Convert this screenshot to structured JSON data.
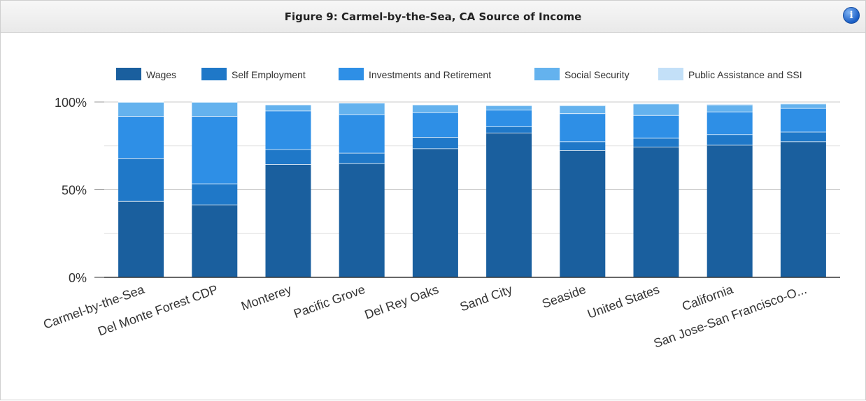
{
  "header": {
    "title": "Figure 9: Carmel-by-the-Sea, CA Source of Income",
    "info_icon": "info-icon"
  },
  "chart_data": {
    "type": "bar",
    "stacked": true,
    "title": "Figure 9: Carmel-by-the-Sea, CA Source of Income",
    "xlabel": "",
    "ylabel": "",
    "ylim": [
      0,
      100
    ],
    "y_ticks": [
      "0%",
      "50%",
      "100%"
    ],
    "legend_position": "top",
    "grid": true,
    "categories": [
      "Carmel-by-the-Sea",
      "Del Monte Forest CDP",
      "Monterey",
      "Pacific Grove",
      "Del Rey Oaks",
      "Sand City",
      "Seaside",
      "United States",
      "California",
      "San Jose-San Francisco-O..."
    ],
    "series": [
      {
        "name": "Wages",
        "color": "#1a5f9e",
        "values": [
          43.5,
          41.5,
          64.5,
          65,
          73.5,
          82.5,
          72.5,
          74.5,
          75.5,
          77.5
        ]
      },
      {
        "name": "Self Employment",
        "color": "#1f78c8",
        "values": [
          24.5,
          12,
          8.5,
          6,
          6.5,
          3.5,
          5,
          5,
          6,
          5.5
        ]
      },
      {
        "name": "Investments and Retirement",
        "color": "#2e8fe6",
        "values": [
          24,
          38.5,
          22,
          22,
          14,
          9.5,
          16,
          13,
          13,
          13.5
        ]
      },
      {
        "name": "Social Security",
        "color": "#64b2ee",
        "values": [
          8,
          8,
          3.5,
          6.5,
          4.5,
          2.5,
          4.5,
          6.5,
          4,
          2.5
        ]
      },
      {
        "name": "Public Assistance and SSI",
        "color": "#c3e0f8",
        "values": [
          0,
          0,
          0,
          0,
          0,
          0.5,
          0.5,
          0.5,
          0.5,
          0.5
        ]
      }
    ]
  }
}
